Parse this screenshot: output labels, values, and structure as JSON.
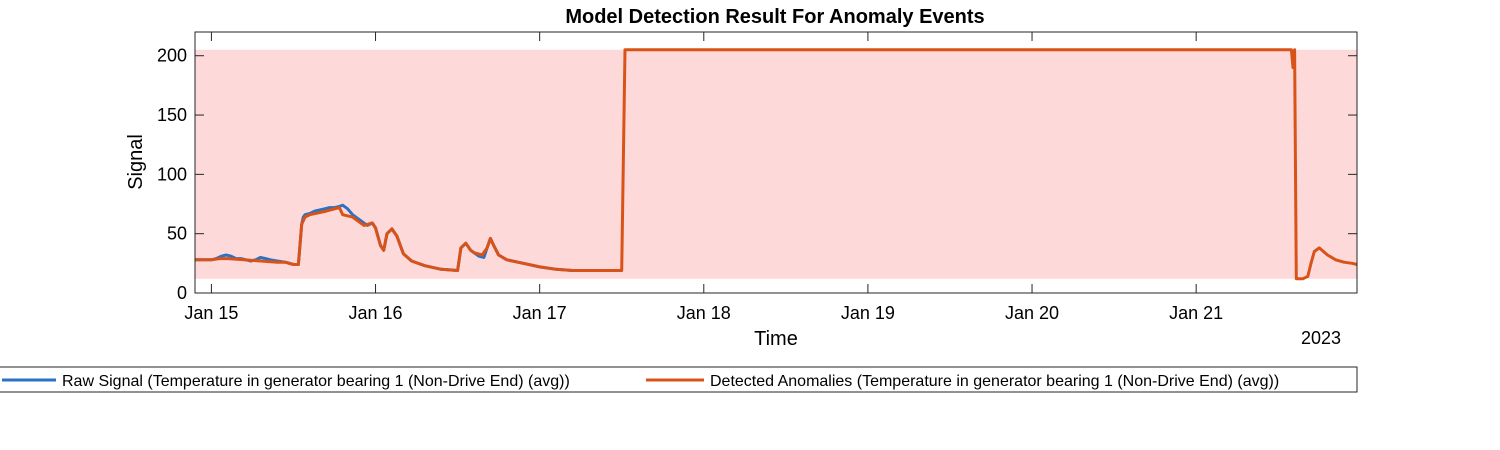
{
  "chart_data": {
    "type": "line",
    "title": "Model Detection Result For Anomaly Events",
    "xlabel": "Time",
    "ylabel": "Signal",
    "year_label": "2023",
    "x_unit": "days (Jan 15 = 15)",
    "xlim": [
      14.9,
      21.98
    ],
    "ylim": [
      0,
      220
    ],
    "x_ticks": [
      15,
      16,
      17,
      18,
      19,
      20,
      21
    ],
    "x_tick_labels": [
      "Jan 15",
      "Jan 16",
      "Jan 17",
      "Jan 18",
      "Jan 19",
      "Jan 20",
      "Jan 21"
    ],
    "y_ticks": [
      0,
      50,
      100,
      150,
      200
    ],
    "y_tick_labels": [
      "0",
      "50",
      "100",
      "150",
      "200"
    ],
    "grid": false,
    "legend_position": "bottom",
    "anomaly_region": {
      "y_range": [
        12,
        205
      ],
      "color": "#fdd9da"
    },
    "series": [
      {
        "name": "Raw Signal (Temperature in generator bearing 1 (Non-Drive End) (avg))",
        "color": "#2a72c4",
        "x": [
          14.9,
          15.0,
          15.03,
          15.06,
          15.09,
          15.12,
          15.15,
          15.18,
          15.21,
          15.24,
          15.27,
          15.3,
          15.33,
          15.36,
          15.4,
          15.45,
          15.5,
          15.53,
          15.55,
          15.56,
          15.57,
          15.6,
          15.63,
          15.66,
          15.69,
          15.72,
          15.75,
          15.78,
          15.8,
          15.83,
          15.86,
          15.89,
          15.92,
          15.95,
          15.98,
          16.0,
          16.03,
          16.05,
          16.07,
          16.1,
          16.13,
          16.17,
          16.22,
          16.3,
          16.4,
          16.5,
          16.52,
          16.55,
          16.58,
          16.6,
          16.63,
          16.66,
          16.68,
          16.7,
          16.72,
          16.75,
          16.8,
          16.9,
          17.0,
          17.1,
          17.2,
          17.3,
          17.4,
          17.5
        ],
        "values": [
          28,
          28,
          29,
          31,
          32,
          31,
          29,
          29,
          28,
          27,
          28,
          30,
          29,
          28,
          27,
          26,
          24,
          24,
          58,
          64,
          66,
          67,
          69,
          70,
          71,
          72,
          72,
          73,
          74,
          71,
          66,
          63,
          60,
          57,
          59,
          55,
          40,
          36,
          50,
          54,
          48,
          33,
          27,
          23,
          20,
          19,
          38,
          42,
          36,
          34,
          31,
          30,
          38,
          46,
          40,
          32,
          28,
          25,
          22,
          20,
          19,
          19,
          19,
          19
        ]
      },
      {
        "name": "Detected Anomalies (Temperature in generator bearing 1 (Non-Drive End) (avg))",
        "color": "#d95319",
        "x": [
          14.9,
          15.0,
          15.05,
          15.1,
          15.2,
          15.3,
          15.4,
          15.45,
          15.5,
          15.53,
          15.55,
          15.57,
          15.6,
          15.7,
          15.78,
          15.8,
          15.86,
          15.9,
          15.93,
          15.98,
          16.0,
          16.03,
          16.05,
          16.07,
          16.1,
          16.13,
          16.17,
          16.22,
          16.3,
          16.4,
          16.5,
          16.52,
          16.55,
          16.58,
          16.6,
          16.65,
          16.68,
          16.7,
          16.72,
          16.75,
          16.8,
          16.9,
          17.0,
          17.1,
          17.2,
          17.3,
          17.4,
          17.5,
          17.52,
          17.6,
          18.0,
          19.0,
          20.0,
          21.0,
          21.58,
          21.59,
          21.6,
          21.6,
          21.61,
          21.62,
          21.65,
          21.68,
          21.7,
          21.72,
          21.75,
          21.8,
          21.85,
          21.9,
          21.95,
          21.98
        ],
        "values": [
          28,
          28,
          29,
          29,
          28,
          27,
          26,
          26,
          24,
          24,
          58,
          64,
          66,
          69,
          72,
          66,
          64,
          60,
          57,
          59,
          55,
          40,
          36,
          50,
          54,
          48,
          33,
          27,
          23,
          20,
          19,
          38,
          42,
          36,
          34,
          32,
          38,
          46,
          40,
          32,
          28,
          25,
          22,
          20,
          19,
          19,
          19,
          19,
          205,
          205,
          205,
          205,
          205,
          205,
          205,
          190,
          205,
          205,
          12,
          12,
          12,
          14,
          25,
          35,
          38,
          32,
          28,
          26,
          25,
          24
        ]
      }
    ]
  }
}
